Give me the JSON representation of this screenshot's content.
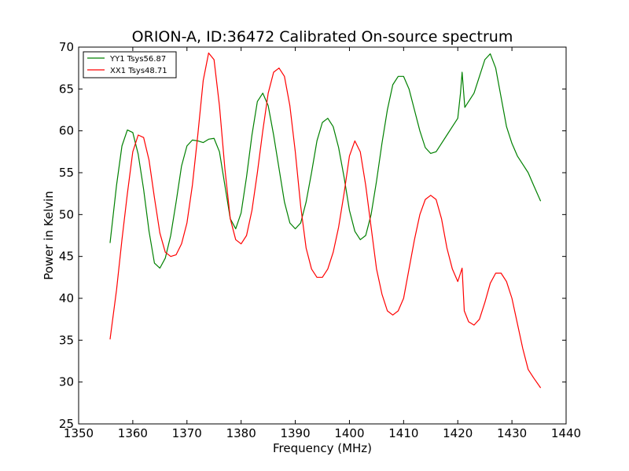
{
  "chart_data": {
    "type": "line",
    "title": "ORION-A, ID:36472 Calibrated On-source spectrum",
    "xlabel": "Frequency (MHz)",
    "ylabel": "Power in Kelvin",
    "xlim": [
      1350,
      1440
    ],
    "ylim": [
      25,
      70
    ],
    "xticks": [
      1350,
      1360,
      1370,
      1380,
      1390,
      1400,
      1410,
      1420,
      1430,
      1440
    ],
    "yticks": [
      25,
      30,
      35,
      40,
      45,
      50,
      55,
      60,
      65,
      70
    ],
    "grid": false,
    "legend_position": "top-left",
    "series": [
      {
        "name": "YY1 Tsys56.87",
        "color": "#008000",
        "x": [
          1355.8,
          1357,
          1358,
          1359,
          1360,
          1361,
          1362,
          1363,
          1364,
          1365,
          1366,
          1367,
          1368,
          1369,
          1370,
          1371,
          1372,
          1373,
          1374,
          1375,
          1376,
          1377,
          1378,
          1379,
          1380,
          1381,
          1382,
          1383,
          1384,
          1385,
          1386,
          1387,
          1388,
          1389,
          1390,
          1391,
          1392,
          1393,
          1394,
          1395,
          1396,
          1397,
          1398,
          1399,
          1400,
          1401,
          1402,
          1403,
          1404,
          1405,
          1406,
          1407,
          1408,
          1409,
          1410,
          1411,
          1412,
          1413,
          1414,
          1415,
          1416,
          1417,
          1418,
          1419,
          1420,
          1420.5,
          1420.8,
          1421.3,
          1422,
          1423,
          1424,
          1425,
          1426,
          1427,
          1428,
          1429,
          1430,
          1431,
          1432,
          1433,
          1434,
          1435.3
        ],
        "y": [
          46.6,
          53.5,
          58.2,
          60.1,
          59.8,
          57.2,
          53.0,
          48.0,
          44.2,
          43.6,
          44.8,
          47.5,
          51.5,
          55.8,
          58.2,
          58.9,
          58.8,
          58.6,
          59.0,
          59.1,
          57.5,
          53.5,
          49.5,
          48.3,
          50.2,
          54.5,
          59.5,
          63.5,
          64.5,
          63.0,
          59.5,
          55.5,
          51.5,
          49.0,
          48.3,
          49.0,
          51.5,
          55.0,
          58.8,
          61.0,
          61.5,
          60.5,
          58.0,
          54.5,
          50.5,
          48.0,
          47.0,
          47.5,
          50.0,
          54.0,
          58.5,
          62.5,
          65.5,
          66.5,
          66.5,
          65.0,
          62.5,
          60.0,
          58.0,
          57.3,
          57.5,
          58.5,
          59.5,
          60.5,
          61.5,
          64.5,
          67.0,
          62.8,
          63.5,
          64.5,
          66.5,
          68.5,
          69.2,
          67.5,
          64.0,
          60.5,
          58.5,
          57.0,
          56.0,
          55.0,
          53.5,
          51.6
        ]
      },
      {
        "name": "XX1 Tsys48.71",
        "color": "#ff0000",
        "x": [
          1355.8,
          1357,
          1358,
          1359,
          1360,
          1361,
          1362,
          1363,
          1364,
          1365,
          1366,
          1367,
          1368,
          1369,
          1370,
          1371,
          1372,
          1373,
          1374,
          1375,
          1376,
          1377,
          1378,
          1379,
          1380,
          1381,
          1382,
          1383,
          1384,
          1385,
          1386,
          1387,
          1388,
          1389,
          1390,
          1391,
          1392,
          1393,
          1394,
          1395,
          1396,
          1397,
          1398,
          1399,
          1400,
          1401,
          1402,
          1403,
          1404,
          1405,
          1406,
          1407,
          1408,
          1409,
          1410,
          1411,
          1412,
          1413,
          1414,
          1415,
          1416,
          1417,
          1418,
          1419,
          1420,
          1420.5,
          1420.8,
          1421.2,
          1422,
          1423,
          1424,
          1425,
          1426,
          1427,
          1428,
          1429,
          1430,
          1431,
          1432,
          1433,
          1434,
          1435.3
        ],
        "y": [
          35.1,
          41.0,
          47.0,
          52.5,
          57.5,
          59.5,
          59.2,
          56.5,
          52.0,
          47.8,
          45.5,
          45.0,
          45.2,
          46.5,
          49.0,
          53.5,
          59.5,
          66.0,
          69.3,
          68.5,
          63.0,
          55.5,
          49.5,
          47.0,
          46.5,
          47.5,
          50.5,
          55.0,
          60.0,
          64.5,
          67.0,
          67.5,
          66.5,
          63.0,
          57.5,
          51.0,
          46.0,
          43.5,
          42.5,
          42.5,
          43.5,
          45.5,
          48.5,
          52.5,
          57.0,
          58.8,
          57.5,
          53.5,
          48.5,
          43.5,
          40.5,
          38.5,
          38.0,
          38.5,
          40.0,
          43.5,
          47.0,
          50.0,
          51.8,
          52.3,
          51.8,
          49.5,
          46.0,
          43.5,
          42.0,
          43.0,
          43.6,
          38.5,
          37.2,
          36.8,
          37.5,
          39.5,
          41.8,
          43.0,
          43.0,
          42.0,
          40.0,
          37.0,
          34.0,
          31.5,
          30.5,
          29.3
        ]
      }
    ]
  }
}
